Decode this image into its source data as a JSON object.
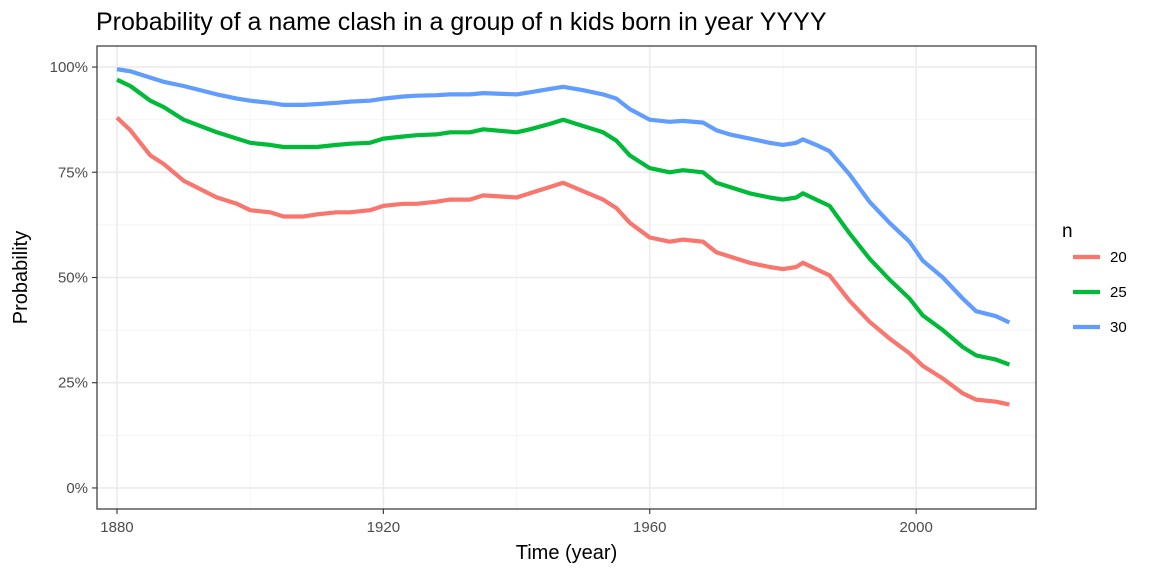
{
  "chart_data": {
    "type": "line",
    "title": "Probability of a name clash in a group of n kids born in year YYYY",
    "xlabel": "Time (year)",
    "ylabel": "Probability",
    "xlim": [
      1877,
      2018
    ],
    "ylim": [
      -0.05,
      1.05
    ],
    "x_ticks": [
      1880,
      1920,
      1960,
      2000
    ],
    "x_tick_labels": [
      "1880",
      "1920",
      "1960",
      "2000"
    ],
    "y_ticks": [
      0,
      0.25,
      0.5,
      0.75,
      1.0
    ],
    "y_tick_labels": [
      "0%",
      "25%",
      "50%",
      "75%",
      "100%"
    ],
    "grid": true,
    "legend": {
      "title": "n",
      "placement": "right"
    },
    "series": [
      {
        "name": "20",
        "color": "#F8766D",
        "points": [
          [
            1880,
            0.88
          ],
          [
            1882,
            0.85
          ],
          [
            1885,
            0.79
          ],
          [
            1887,
            0.77
          ],
          [
            1890,
            0.73
          ],
          [
            1895,
            0.69
          ],
          [
            1898,
            0.675
          ],
          [
            1900,
            0.66
          ],
          [
            1903,
            0.655
          ],
          [
            1905,
            0.645
          ],
          [
            1908,
            0.645
          ],
          [
            1910,
            0.65
          ],
          [
            1913,
            0.655
          ],
          [
            1915,
            0.655
          ],
          [
            1918,
            0.66
          ],
          [
            1920,
            0.67
          ],
          [
            1923,
            0.675
          ],
          [
            1925,
            0.675
          ],
          [
            1928,
            0.68
          ],
          [
            1930,
            0.685
          ],
          [
            1933,
            0.685
          ],
          [
            1935,
            0.695
          ],
          [
            1940,
            0.69
          ],
          [
            1942,
            0.7
          ],
          [
            1945,
            0.715
          ],
          [
            1947,
            0.725
          ],
          [
            1950,
            0.705
          ],
          [
            1953,
            0.685
          ],
          [
            1955,
            0.665
          ],
          [
            1957,
            0.63
          ],
          [
            1960,
            0.595
          ],
          [
            1963,
            0.585
          ],
          [
            1965,
            0.59
          ],
          [
            1968,
            0.585
          ],
          [
            1970,
            0.56
          ],
          [
            1972,
            0.55
          ],
          [
            1975,
            0.535
          ],
          [
            1978,
            0.525
          ],
          [
            1980,
            0.52
          ],
          [
            1982,
            0.525
          ],
          [
            1983,
            0.535
          ],
          [
            1985,
            0.52
          ],
          [
            1987,
            0.505
          ],
          [
            1990,
            0.445
          ],
          [
            1993,
            0.395
          ],
          [
            1996,
            0.355
          ],
          [
            1999,
            0.32
          ],
          [
            2001,
            0.29
          ],
          [
            2004,
            0.26
          ],
          [
            2007,
            0.225
          ],
          [
            2009,
            0.21
          ],
          [
            2012,
            0.205
          ],
          [
            2014,
            0.198
          ]
        ]
      },
      {
        "name": "25",
        "color": "#00BA38",
        "points": [
          [
            1880,
            0.97
          ],
          [
            1882,
            0.955
          ],
          [
            1885,
            0.92
          ],
          [
            1887,
            0.905
          ],
          [
            1890,
            0.875
          ],
          [
            1895,
            0.845
          ],
          [
            1898,
            0.83
          ],
          [
            1900,
            0.82
          ],
          [
            1903,
            0.815
          ],
          [
            1905,
            0.81
          ],
          [
            1908,
            0.81
          ],
          [
            1910,
            0.81
          ],
          [
            1913,
            0.815
          ],
          [
            1915,
            0.818
          ],
          [
            1918,
            0.82
          ],
          [
            1920,
            0.83
          ],
          [
            1923,
            0.835
          ],
          [
            1925,
            0.838
          ],
          [
            1928,
            0.84
          ],
          [
            1930,
            0.845
          ],
          [
            1933,
            0.845
          ],
          [
            1935,
            0.852
          ],
          [
            1940,
            0.845
          ],
          [
            1942,
            0.852
          ],
          [
            1945,
            0.865
          ],
          [
            1947,
            0.875
          ],
          [
            1950,
            0.86
          ],
          [
            1953,
            0.845
          ],
          [
            1955,
            0.825
          ],
          [
            1957,
            0.79
          ],
          [
            1960,
            0.76
          ],
          [
            1963,
            0.75
          ],
          [
            1965,
            0.755
          ],
          [
            1968,
            0.75
          ],
          [
            1970,
            0.725
          ],
          [
            1972,
            0.715
          ],
          [
            1975,
            0.7
          ],
          [
            1978,
            0.69
          ],
          [
            1980,
            0.685
          ],
          [
            1982,
            0.69
          ],
          [
            1983,
            0.7
          ],
          [
            1985,
            0.685
          ],
          [
            1987,
            0.67
          ],
          [
            1990,
            0.605
          ],
          [
            1993,
            0.545
          ],
          [
            1996,
            0.495
          ],
          [
            1999,
            0.45
          ],
          [
            2001,
            0.41
          ],
          [
            2004,
            0.375
          ],
          [
            2007,
            0.335
          ],
          [
            2009,
            0.315
          ],
          [
            2012,
            0.305
          ],
          [
            2014,
            0.293
          ]
        ]
      },
      {
        "name": "30",
        "color": "#619CFF",
        "points": [
          [
            1880,
            0.995
          ],
          [
            1882,
            0.99
          ],
          [
            1885,
            0.975
          ],
          [
            1887,
            0.965
          ],
          [
            1890,
            0.955
          ],
          [
            1895,
            0.935
          ],
          [
            1898,
            0.925
          ],
          [
            1900,
            0.92
          ],
          [
            1903,
            0.915
          ],
          [
            1905,
            0.91
          ],
          [
            1908,
            0.91
          ],
          [
            1910,
            0.912
          ],
          [
            1913,
            0.915
          ],
          [
            1915,
            0.918
          ],
          [
            1918,
            0.92
          ],
          [
            1920,
            0.925
          ],
          [
            1923,
            0.93
          ],
          [
            1925,
            0.932
          ],
          [
            1928,
            0.933
          ],
          [
            1930,
            0.935
          ],
          [
            1933,
            0.935
          ],
          [
            1935,
            0.938
          ],
          [
            1940,
            0.935
          ],
          [
            1942,
            0.94
          ],
          [
            1945,
            0.948
          ],
          [
            1947,
            0.953
          ],
          [
            1950,
            0.945
          ],
          [
            1953,
            0.935
          ],
          [
            1955,
            0.925
          ],
          [
            1957,
            0.9
          ],
          [
            1960,
            0.875
          ],
          [
            1963,
            0.87
          ],
          [
            1965,
            0.872
          ],
          [
            1968,
            0.868
          ],
          [
            1970,
            0.85
          ],
          [
            1972,
            0.84
          ],
          [
            1975,
            0.83
          ],
          [
            1978,
            0.82
          ],
          [
            1980,
            0.815
          ],
          [
            1982,
            0.82
          ],
          [
            1983,
            0.828
          ],
          [
            1985,
            0.815
          ],
          [
            1987,
            0.8
          ],
          [
            1990,
            0.745
          ],
          [
            1993,
            0.68
          ],
          [
            1996,
            0.63
          ],
          [
            1999,
            0.585
          ],
          [
            2001,
            0.54
          ],
          [
            2004,
            0.5
          ],
          [
            2007,
            0.45
          ],
          [
            2009,
            0.42
          ],
          [
            2012,
            0.408
          ],
          [
            2014,
            0.393
          ]
        ]
      }
    ]
  }
}
